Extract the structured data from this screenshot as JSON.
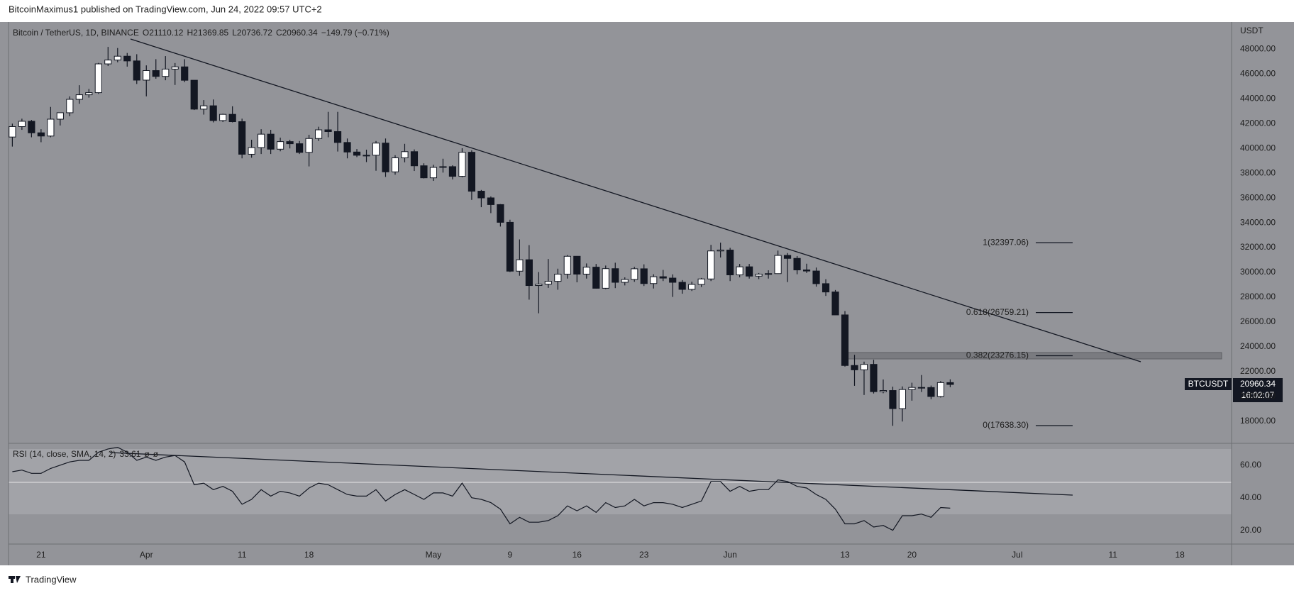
{
  "header": {
    "publisher": "BitcoinMaximus1 published on TradingView.com, Jun 24, 2022 09:57 UTC+2"
  },
  "footer": {
    "brand": "TradingView"
  },
  "chart_data": {
    "type": "candlestick",
    "title": "Bitcoin / TetherUS, 1D, BINANCE",
    "ohlc_letters": [
      "O",
      "H",
      "L",
      "C"
    ],
    "change": "−149.79 (−0.71%)",
    "y_axis_label": "USDT",
    "price_time": "16:02:07",
    "up_color": "#ffffff",
    "down_color": "#131722",
    "series": [
      {
        "name": "BTCUSDT",
        "ohlc": [
          [
            40920,
            42000,
            40150,
            41760
          ],
          [
            41760,
            42400,
            41500,
            42190
          ],
          [
            42190,
            42300,
            40900,
            41260
          ],
          [
            41260,
            41550,
            40500,
            41000
          ],
          [
            41000,
            43350,
            40900,
            42360
          ],
          [
            42360,
            42900,
            41850,
            42880
          ],
          [
            42880,
            44200,
            42600,
            43960
          ],
          [
            43960,
            45100,
            43600,
            44330
          ],
          [
            44330,
            44800,
            44100,
            44500
          ],
          [
            44500,
            46900,
            44400,
            46820
          ],
          [
            46820,
            48190,
            46650,
            47130
          ],
          [
            47130,
            48100,
            46950,
            47440
          ],
          [
            47440,
            47700,
            46600,
            47060
          ],
          [
            47060,
            47600,
            45200,
            45510
          ],
          [
            45510,
            46700,
            44200,
            46280
          ],
          [
            46280,
            47200,
            45620,
            45810
          ],
          [
            45810,
            47450,
            45500,
            46400
          ],
          [
            46400,
            46890,
            45120,
            46580
          ],
          [
            46580,
            47200,
            45350,
            45500
          ],
          [
            45500,
            45500,
            43100,
            43170
          ],
          [
            43170,
            43900,
            42730,
            43440
          ],
          [
            43440,
            43950,
            42100,
            42250
          ],
          [
            42250,
            42800,
            42130,
            42750
          ],
          [
            42750,
            43400,
            42100,
            42160
          ],
          [
            42160,
            42400,
            39200,
            39530
          ],
          [
            39530,
            40700,
            39250,
            40070
          ],
          [
            40070,
            41550,
            39550,
            41150
          ],
          [
            41150,
            41500,
            39550,
            39940
          ],
          [
            39940,
            40870,
            39770,
            40550
          ],
          [
            40550,
            40700,
            40000,
            40380
          ],
          [
            40380,
            40600,
            39550,
            39680
          ],
          [
            39680,
            41100,
            38550,
            40800
          ],
          [
            40800,
            41750,
            40600,
            41500
          ],
          [
            41500,
            42950,
            40900,
            41360
          ],
          [
            41360,
            42950,
            39750,
            40480
          ],
          [
            40480,
            40800,
            39200,
            39710
          ],
          [
            39710,
            39950,
            39300,
            39450
          ],
          [
            39450,
            39900,
            38900,
            39450
          ],
          [
            39450,
            40600,
            38200,
            40430
          ],
          [
            40430,
            40800,
            37700,
            38110
          ],
          [
            38110,
            39450,
            37880,
            39240
          ],
          [
            39240,
            40370,
            38880,
            39740
          ],
          [
            39740,
            39920,
            38180,
            38600
          ],
          [
            38600,
            38800,
            37580,
            37630
          ],
          [
            37630,
            38680,
            37380,
            38470
          ],
          [
            38470,
            39170,
            38050,
            38530
          ],
          [
            38530,
            38640,
            37500,
            37750
          ],
          [
            37750,
            40020,
            37670,
            39690
          ],
          [
            39690,
            39850,
            35850,
            36550
          ],
          [
            36550,
            36650,
            35260,
            36010
          ],
          [
            36010,
            36130,
            34780,
            35470
          ],
          [
            35470,
            35510,
            33700,
            34040
          ],
          [
            34040,
            34250,
            30030,
            30100
          ],
          [
            30100,
            32660,
            29730,
            31020
          ],
          [
            31020,
            32200,
            27800,
            28940
          ],
          [
            28940,
            30030,
            26700,
            29050
          ],
          [
            29050,
            31080,
            28750,
            29280
          ],
          [
            29280,
            30300,
            28600,
            29860
          ],
          [
            29860,
            31400,
            29500,
            31300
          ],
          [
            31300,
            31320,
            29200,
            29860
          ],
          [
            29860,
            30720,
            29500,
            30420
          ],
          [
            30420,
            30680,
            28700,
            28720
          ],
          [
            28720,
            30550,
            28650,
            30300
          ],
          [
            30300,
            30780,
            28730,
            29200
          ],
          [
            29200,
            29600,
            28950,
            29430
          ],
          [
            29430,
            30450,
            29240,
            30290
          ],
          [
            30290,
            30650,
            28900,
            29100
          ],
          [
            29100,
            29850,
            28700,
            29650
          ],
          [
            29650,
            30200,
            29300,
            29540
          ],
          [
            29540,
            29840,
            28020,
            29200
          ],
          [
            29200,
            29380,
            28280,
            28630
          ],
          [
            28630,
            29250,
            28500,
            29030
          ],
          [
            29030,
            29550,
            28820,
            29470
          ],
          [
            29470,
            32220,
            29300,
            31730
          ],
          [
            31730,
            32400,
            31200,
            31800
          ],
          [
            31800,
            31980,
            29300,
            29800
          ],
          [
            29800,
            30680,
            29600,
            30450
          ],
          [
            30450,
            30680,
            29500,
            29700
          ],
          [
            29700,
            29950,
            29460,
            29860
          ],
          [
            29860,
            30170,
            29500,
            29900
          ],
          [
            29900,
            31760,
            29880,
            31370
          ],
          [
            31370,
            31560,
            29220,
            31130
          ],
          [
            31130,
            31320,
            29850,
            30200
          ],
          [
            30200,
            30700,
            29950,
            30110
          ],
          [
            30110,
            30390,
            28850,
            29090
          ],
          [
            29090,
            29450,
            28100,
            28420
          ],
          [
            28420,
            28580,
            26560,
            26570
          ],
          [
            26570,
            26880,
            22400,
            22490
          ],
          [
            22490,
            23350,
            20850,
            22140
          ],
          [
            22140,
            22800,
            20110,
            22580
          ],
          [
            22580,
            22950,
            20230,
            20380
          ],
          [
            20380,
            21360,
            20250,
            20470
          ],
          [
            20470,
            20780,
            17620,
            19010
          ],
          [
            19010,
            20800,
            17970,
            20550
          ],
          [
            20550,
            21100,
            19650,
            20720
          ],
          [
            20720,
            21720,
            20350,
            20710
          ],
          [
            20710,
            20870,
            19770,
            19990
          ],
          [
            19990,
            21240,
            19900,
            21110
          ],
          [
            21110.12,
            21369.85,
            20736.72,
            20960.34
          ]
        ]
      }
    ],
    "xlim": [
      -0.4,
      127.4
    ],
    "xticks": [
      {
        "value": 3,
        "label": "21"
      },
      {
        "value": 14,
        "label": "Apr"
      },
      {
        "value": 24,
        "label": "11"
      },
      {
        "value": 31,
        "label": "18"
      },
      {
        "value": 44,
        "label": "May"
      },
      {
        "value": 52,
        "label": "9"
      },
      {
        "value": 59,
        "label": "16"
      },
      {
        "value": 66,
        "label": "23"
      },
      {
        "value": 75,
        "label": "Jun"
      },
      {
        "value": 87,
        "label": "13"
      },
      {
        "value": 94,
        "label": "20"
      },
      {
        "value": 105,
        "label": "Jul"
      },
      {
        "value": 115,
        "label": "11"
      },
      {
        "value": 122,
        "label": "18"
      }
    ],
    "ylim": [
      16267,
      50200
    ],
    "yticks": [
      {
        "value": 18000,
        "label": "18000.00"
      },
      {
        "value": 20000,
        "label": "20000.00"
      },
      {
        "value": 22000,
        "label": "22000.00"
      },
      {
        "value": 24000,
        "label": "24000.00"
      },
      {
        "value": 26000,
        "label": "26000.00"
      },
      {
        "value": 28000,
        "label": "28000.00"
      },
      {
        "value": 30000,
        "label": "30000.00"
      },
      {
        "value": 32000,
        "label": "32000.00"
      },
      {
        "value": 34000,
        "label": "34000.00"
      },
      {
        "value": 36000,
        "label": "36000.00"
      },
      {
        "value": 38000,
        "label": "38000.00"
      },
      {
        "value": 40000,
        "label": "40000.00"
      },
      {
        "value": 42000,
        "label": "42000.00"
      },
      {
        "value": 44000,
        "label": "44000.00"
      },
      {
        "value": 46000,
        "label": "46000.00"
      },
      {
        "value": 48000,
        "label": "48000.00"
      }
    ],
    "fib_levels": [
      {
        "value": 32397.06,
        "label": "1(32397.06)"
      },
      {
        "value": 26759.21,
        "label": "0.618(26759.21)"
      },
      {
        "value": 23276.15,
        "label": "0.382(23276.15)"
      },
      {
        "value": 17638.3,
        "label": "0(17638.30)"
      }
    ],
    "rsi": {
      "title": "RSI (14, close, SMA, 14, 2)",
      "flags": [
        "ø",
        "ø"
      ],
      "color": "#131722",
      "values": [
        56,
        57,
        55,
        55,
        58,
        60,
        62,
        63,
        63,
        68,
        70,
        71,
        68,
        63,
        65,
        63,
        65,
        66,
        62,
        48,
        49,
        45,
        47,
        44,
        36,
        39,
        45,
        41,
        44,
        43,
        41,
        46,
        49,
        48,
        45,
        42,
        41,
        41,
        45,
        38,
        42,
        45,
        42,
        39,
        43,
        43,
        41,
        49,
        40,
        39,
        37,
        33,
        24,
        28,
        25,
        25,
        26,
        29,
        35,
        32,
        35,
        31,
        37,
        34,
        35,
        39,
        35,
        37,
        37,
        36,
        34,
        36,
        38,
        50,
        50,
        44,
        47,
        44,
        45,
        45,
        51,
        50,
        47,
        46,
        42,
        39,
        33,
        24,
        24,
        26,
        22,
        23,
        20,
        29,
        29,
        30,
        28,
        34,
        33.61
      ],
      "ylim": [
        12,
        73
      ],
      "yticks": [
        {
          "value": 20,
          "label": "20.00"
        },
        {
          "value": 40,
          "label": "40.00"
        },
        {
          "value": 60,
          "label": "60.00"
        }
      ]
    }
  }
}
